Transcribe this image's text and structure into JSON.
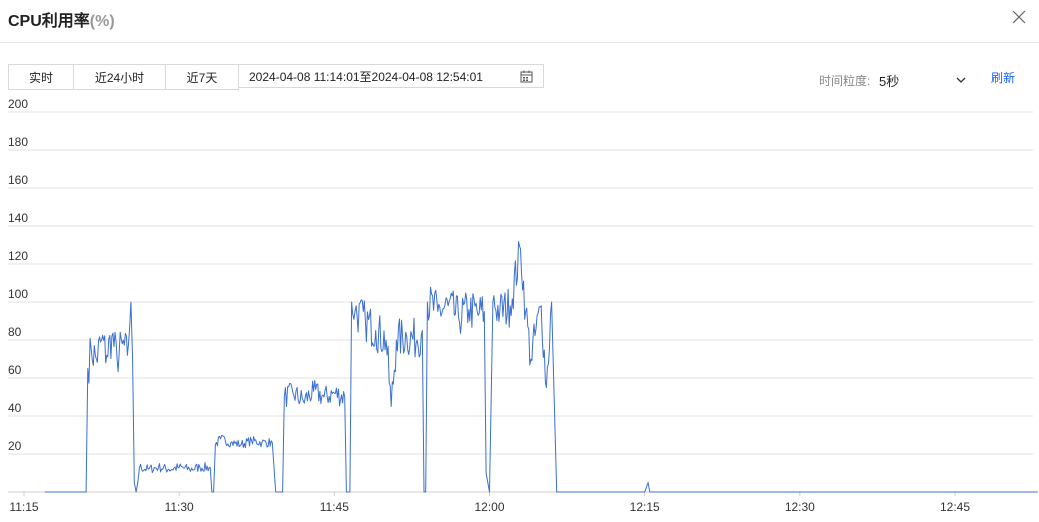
{
  "header": {
    "title": "CPU利用率",
    "title_unit": "(%)"
  },
  "toolbar": {
    "realtime_label": "实时",
    "last24h_label": "近24小时",
    "last7d_label": "近7天",
    "date_range": "2024-04-08 11:14:01至2024-04-08 12:54:01",
    "granularity_label": "时间粒度:",
    "granularity_value": "5秒",
    "refresh_label": "刷新"
  },
  "icons": {
    "close": "close-icon",
    "calendar": "calendar-icon",
    "dropdown": "chevron-down-icon"
  },
  "colors": {
    "line": "#3b6fd0",
    "grid": "#e0e0e0",
    "accent": "#1664ff"
  },
  "chart_data": {
    "type": "line",
    "title": "CPU利用率(%)",
    "xlabel": "",
    "ylabel": "",
    "grid": true,
    "legend": "none",
    "x_range": [
      "11:15",
      "12:54"
    ],
    "ylim": [
      0,
      200
    ],
    "y_ticks": [
      20,
      40,
      60,
      80,
      100,
      120,
      140,
      160,
      180,
      200
    ],
    "x_ticks": [
      "11:15",
      "11:30",
      "11:45",
      "12:00",
      "12:15",
      "12:30",
      "12:45"
    ],
    "series": [
      {
        "points": [
          [
            "11:17",
            0
          ],
          [
            "11:20",
            0
          ],
          [
            "11:21",
            0
          ],
          [
            "11:21:10",
            65
          ],
          [
            "11:21:30",
            75
          ],
          [
            "11:22",
            70
          ],
          [
            "11:22:30",
            80
          ],
          [
            "11:23",
            72
          ],
          [
            "11:23:30",
            82
          ],
          [
            "11:24",
            70
          ],
          [
            "11:24:30",
            78
          ],
          [
            "11:25",
            72
          ],
          [
            "11:25:20",
            100
          ],
          [
            "11:25:30",
            70
          ],
          [
            "11:25:40",
            5
          ],
          [
            "11:25:50",
            0
          ],
          [
            "11:26",
            5
          ],
          [
            "11:26:10",
            13
          ],
          [
            "11:27",
            12
          ],
          [
            "11:28",
            13
          ],
          [
            "11:29",
            12
          ],
          [
            "11:30",
            13
          ],
          [
            "11:31",
            12
          ],
          [
            "11:32",
            13
          ],
          [
            "11:33",
            13
          ],
          [
            "11:33:10",
            0
          ],
          [
            "11:33:20",
            0
          ],
          [
            "11:33:30",
            25
          ],
          [
            "11:34",
            28
          ],
          [
            "11:35",
            26
          ],
          [
            "11:36",
            25
          ],
          [
            "11:37",
            27
          ],
          [
            "11:38",
            26
          ],
          [
            "11:39",
            26
          ],
          [
            "11:39:20",
            0
          ],
          [
            "11:40",
            0
          ],
          [
            "11:40:10",
            50
          ],
          [
            "11:41",
            52
          ],
          [
            "11:42",
            48
          ],
          [
            "11:43",
            53
          ],
          [
            "11:44",
            50
          ],
          [
            "11:45",
            52
          ],
          [
            "11:46",
            50
          ],
          [
            "11:46:10",
            0
          ],
          [
            "11:46:30",
            0
          ],
          [
            "11:46:40",
            100
          ],
          [
            "11:47",
            95
          ],
          [
            "11:48",
            90
          ],
          [
            "11:49",
            85
          ],
          [
            "11:50",
            80
          ],
          [
            "11:50:30",
            45
          ],
          [
            "11:51",
            80
          ],
          [
            "11:52",
            82
          ],
          [
            "11:53",
            80
          ],
          [
            "11:53:30",
            85
          ],
          [
            "11:53:40",
            0
          ],
          [
            "11:53:50",
            0
          ],
          [
            "11:54",
            100
          ],
          [
            "11:55",
            95
          ],
          [
            "11:56",
            98
          ],
          [
            "11:57",
            92
          ],
          [
            "11:58",
            96
          ],
          [
            "11:59",
            94
          ],
          [
            "11:59:30",
            95
          ],
          [
            "11:59:40",
            10
          ],
          [
            "12:00",
            0
          ],
          [
            "12:00:20",
            100
          ],
          [
            "12:01",
            95
          ],
          [
            "12:02",
            98
          ],
          [
            "12:03",
            128
          ],
          [
            "12:03:30",
            95
          ],
          [
            "12:04",
            70
          ],
          [
            "12:05",
            98
          ],
          [
            "12:05:30",
            55
          ],
          [
            "12:06",
            100
          ],
          [
            "12:06:30",
            0
          ],
          [
            "12:07",
            0
          ],
          [
            "12:14",
            0
          ],
          [
            "12:15",
            0
          ],
          [
            "12:15:20",
            5
          ],
          [
            "12:15:30",
            0
          ],
          [
            "12:30",
            0
          ],
          [
            "12:45",
            0
          ],
          [
            "12:53",
            0
          ]
        ]
      }
    ]
  }
}
